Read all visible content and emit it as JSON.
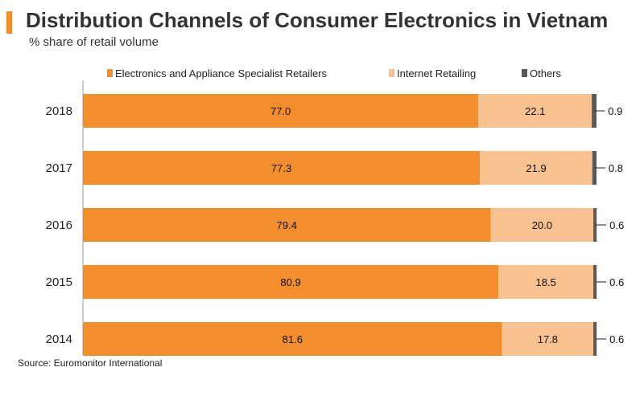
{
  "header": {
    "title": "Distribution Channels of Consumer Electronics in Vietnam",
    "subtitle": "% share of retail volume"
  },
  "footer": {
    "source": "Source: Euromonitor International"
  },
  "colors": {
    "accent": "#f28e2b",
    "series": [
      "#f28e2b",
      "#f8c291",
      "#595959"
    ]
  },
  "chart_data": {
    "type": "bar",
    "orientation": "horizontal",
    "stacked": true,
    "categories": [
      "2018",
      "2017",
      "2016",
      "2015",
      "2014"
    ],
    "series": [
      {
        "name": "Electronics and Appliance Specialist Retailers",
        "values": [
          77.0,
          77.3,
          79.4,
          80.9,
          81.6
        ]
      },
      {
        "name": "Internet Retailing",
        "values": [
          22.1,
          21.9,
          20.0,
          18.5,
          17.8
        ]
      },
      {
        "name": "Others",
        "values": [
          0.9,
          0.8,
          0.6,
          0.6,
          0.6
        ]
      }
    ],
    "xlim": [
      0,
      100
    ],
    "legend_position": "top",
    "grid": false
  }
}
